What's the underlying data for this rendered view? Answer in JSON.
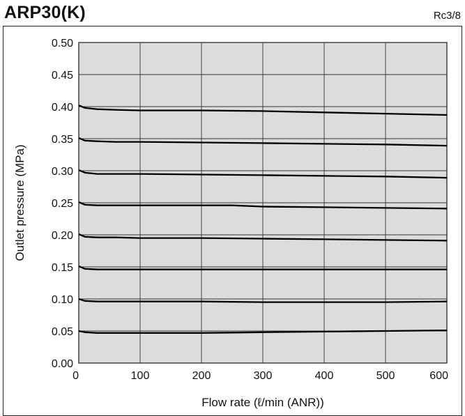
{
  "header": {
    "title": "ARP30(K)",
    "port_size": "Rc3/8"
  },
  "chart_data": {
    "type": "line",
    "title": "ARP30(K)",
    "xlabel": "Flow rate (ℓ/min (ANR))",
    "ylabel": "Outlet pressure  (MPa)",
    "xlim": [
      0,
      600
    ],
    "ylim": [
      0,
      0.5
    ],
    "x_ticks": [
      0,
      100,
      200,
      300,
      400,
      500,
      600
    ],
    "x_tick_labels": [
      "0",
      "100",
      "200",
      "300",
      "400",
      "500",
      "600"
    ],
    "y_ticks": [
      0,
      0.05,
      0.1,
      0.15,
      0.2,
      0.25,
      0.3,
      0.35,
      0.4,
      0.45,
      0.5
    ],
    "y_tick_labels": [
      "0.00",
      "0.05",
      "0.10",
      "0.15",
      "0.20",
      "0.25",
      "0.30",
      "0.35",
      "0.40",
      "0.45",
      "0.50"
    ],
    "grid": true,
    "background": "#dcdcdc",
    "line_color": "#000000",
    "series": [
      {
        "x": [
          0,
          10,
          30,
          60,
          100,
          200,
          300,
          400,
          500,
          600
        ],
        "y": [
          0.05,
          0.048,
          0.047,
          0.047,
          0.047,
          0.047,
          0.048,
          0.049,
          0.05,
          0.051
        ]
      },
      {
        "x": [
          0,
          10,
          30,
          60,
          100,
          200,
          300,
          400,
          500,
          600
        ],
        "y": [
          0.1,
          0.097,
          0.096,
          0.096,
          0.096,
          0.096,
          0.095,
          0.095,
          0.095,
          0.096
        ]
      },
      {
        "x": [
          0,
          10,
          30,
          60,
          100,
          200,
          300,
          400,
          500,
          600
        ],
        "y": [
          0.151,
          0.147,
          0.146,
          0.146,
          0.146,
          0.146,
          0.146,
          0.146,
          0.146,
          0.146
        ]
      },
      {
        "x": [
          0,
          10,
          30,
          60,
          100,
          200,
          300,
          400,
          500,
          600
        ],
        "y": [
          0.201,
          0.197,
          0.196,
          0.196,
          0.195,
          0.195,
          0.194,
          0.193,
          0.192,
          0.191
        ]
      },
      {
        "x": [
          0,
          10,
          30,
          60,
          100,
          200,
          250,
          300,
          400,
          500,
          600
        ],
        "y": [
          0.251,
          0.247,
          0.246,
          0.246,
          0.246,
          0.246,
          0.246,
          0.244,
          0.243,
          0.242,
          0.241
        ]
      },
      {
        "x": [
          0,
          10,
          30,
          60,
          100,
          200,
          300,
          400,
          500,
          600
        ],
        "y": [
          0.301,
          0.297,
          0.295,
          0.295,
          0.295,
          0.294,
          0.293,
          0.292,
          0.291,
          0.289
        ]
      },
      {
        "x": [
          0,
          10,
          30,
          60,
          100,
          200,
          300,
          400,
          500,
          600
        ],
        "y": [
          0.351,
          0.347,
          0.346,
          0.345,
          0.345,
          0.344,
          0.343,
          0.342,
          0.341,
          0.339
        ]
      },
      {
        "x": [
          0,
          10,
          30,
          60,
          100,
          200,
          300,
          400,
          500,
          600
        ],
        "y": [
          0.402,
          0.398,
          0.396,
          0.395,
          0.394,
          0.394,
          0.393,
          0.391,
          0.389,
          0.387
        ]
      }
    ]
  }
}
